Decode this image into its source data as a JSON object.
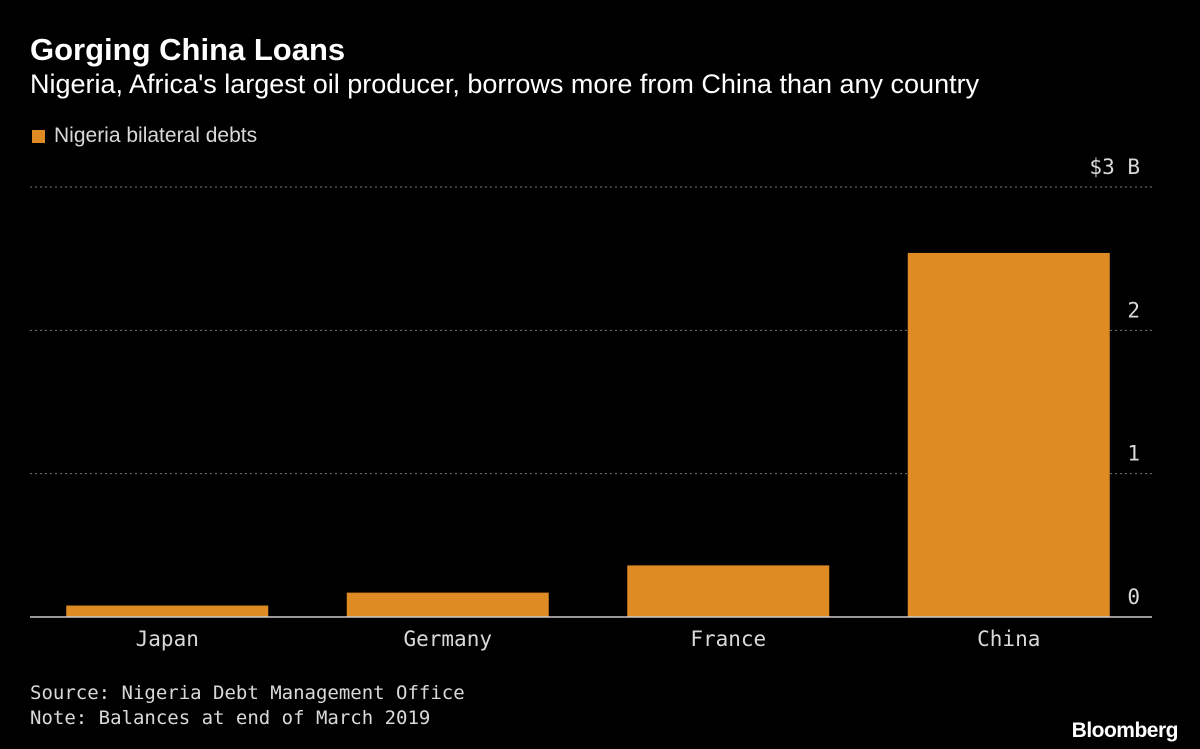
{
  "title": "Gorging China Loans",
  "subtitle": "Nigeria, Africa's largest oil producer, borrows more from China than any country",
  "source": "Source: Nigeria Debt Management Office",
  "note": "Note: Balances at end of March 2019",
  "brand": "Bloomberg",
  "colors": {
    "background": "#000000",
    "bar": "#df8b24",
    "grid": "#777777",
    "text": "#d9d9d9"
  },
  "chart_data": {
    "type": "bar",
    "categories": [
      "Japan",
      "Germany",
      "France",
      "China"
    ],
    "series": [
      {
        "name": "Nigeria bilateral debts",
        "values": [
          0.08,
          0.17,
          0.36,
          2.54
        ]
      }
    ],
    "ylim": [
      0,
      3
    ],
    "yticks": [
      {
        "value": 0,
        "label": "0"
      },
      {
        "value": 1,
        "label": "1"
      },
      {
        "value": 2,
        "label": "2"
      },
      {
        "value": 3,
        "label": "$3 B"
      }
    ],
    "grid": true,
    "legend_position": "top-left",
    "axis_side": "right"
  }
}
